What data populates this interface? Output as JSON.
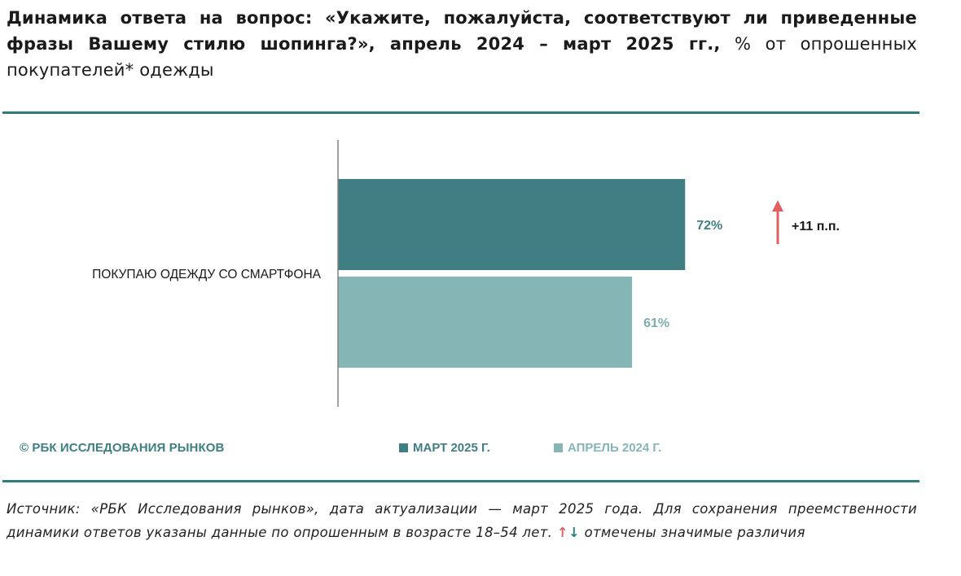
{
  "header": {
    "title_bold": "Динамика ответа на вопрос: «Укажите, пожалуйста, соответствуют ли приведенные фразы Вашему стилю шопинга?», апрель 2024 – март 2025 гг.,",
    "title_regular": " % от опрошенных покупателей* одежды"
  },
  "colors": {
    "series_2025": "#417e83",
    "series_2024": "#86b5b5",
    "accent_rule": "#2e7d7d",
    "up_arrow": "#e06060"
  },
  "chart_data": {
    "type": "bar",
    "orientation": "horizontal",
    "categories": [
      "ПОКУПАЮ ОДЕЖДУ СО СМАРТФОНА"
    ],
    "series": [
      {
        "name": "МАРТ 2025 Г.",
        "values": [
          72
        ],
        "value_labels": [
          "72%"
        ]
      },
      {
        "name": "АПРЕЛЬ 2024 Г.",
        "values": [
          61
        ],
        "value_labels": [
          "61%"
        ]
      }
    ],
    "annotation": {
      "text": "+11 п.п.",
      "direction": "up"
    },
    "xlim": [
      0,
      100
    ],
    "grid": false,
    "legend_position": "bottom"
  },
  "watermark": "© РБК ИССЛЕДОВАНИЯ РЫНКОВ",
  "legend": {
    "items": [
      "МАРТ 2025 Г.",
      "АПРЕЛЬ 2024 Г."
    ]
  },
  "footer": {
    "source_text": "Источник: «РБК Исследования рынков», дата актуализации — март 2025 года. Для сохранения преемственности динамики ответов указаны данные по опрошенным в возрасте 18–54 лет.",
    "up_arrow": "↑",
    "down_arrow": "↓",
    "note_text": "отмечены значимые различия"
  }
}
